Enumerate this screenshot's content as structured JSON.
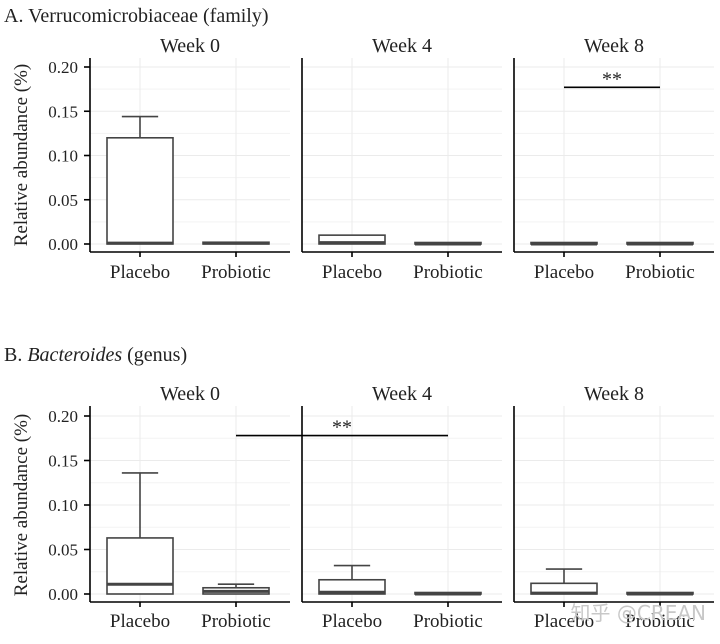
{
  "chart_data": [
    {
      "type": "boxplot",
      "title": "A. Verrucomicrobiaceae (family)",
      "title_prefix": "A. ",
      "title_main": "Verrucomicrobiaceae",
      "title_italic": false,
      "title_suffix": " (family)",
      "ylabel": "Relative abundance (%)",
      "ylim": [
        0,
        0.2
      ],
      "yticks": [
        0.0,
        0.05,
        0.1,
        0.15,
        0.2
      ],
      "ytick_labels": [
        "0.00",
        "0.05",
        "0.10",
        "0.15",
        "0.20"
      ],
      "categories": [
        "Placebo",
        "Probiotic"
      ],
      "facets": [
        {
          "label": "Week 0",
          "boxes": [
            {
              "group": "Placebo",
              "lower": 0.0,
              "q1": 0.0,
              "median": 0.001,
              "q3": 0.12,
              "upper": 0.144
            },
            {
              "group": "Probiotic",
              "lower": 0.0,
              "q1": 0.0,
              "median": 0.001,
              "q3": 0.002,
              "upper": 0.002
            }
          ]
        },
        {
          "label": "Week 4",
          "boxes": [
            {
              "group": "Placebo",
              "lower": 0.0,
              "q1": 0.0,
              "median": 0.0015,
              "q3": 0.01,
              "upper": 0.01
            },
            {
              "group": "Probiotic",
              "lower": 0.0,
              "q1": 0.0,
              "median": 0.0,
              "q3": 0.0,
              "upper": 0.0
            }
          ]
        },
        {
          "label": "Week 8",
          "boxes": [
            {
              "group": "Placebo",
              "lower": 0.0,
              "q1": 0.0,
              "median": 0.0,
              "q3": 0.0,
              "upper": 0.0
            },
            {
              "group": "Probiotic",
              "lower": 0.0,
              "q1": 0.0,
              "median": 0.0,
              "q3": 0.0,
              "upper": 0.0
            }
          ]
        }
      ],
      "annotations": [
        {
          "text": "**",
          "from": {
            "facet": 2,
            "group": "Placebo"
          },
          "to": {
            "facet": 2,
            "group": "Probiotic"
          },
          "y": 0.177
        }
      ]
    },
    {
      "type": "boxplot",
      "title": "B. Bacteroides (genus)",
      "title_prefix": "B. ",
      "title_main": "Bacteroides",
      "title_italic": true,
      "title_suffix": " (genus)",
      "ylabel": "Relative abundance (%)",
      "ylim": [
        0,
        0.2
      ],
      "yticks": [
        0.0,
        0.05,
        0.1,
        0.15,
        0.2
      ],
      "ytick_labels": [
        "0.00",
        "0.05",
        "0.10",
        "0.15",
        "0.20"
      ],
      "categories": [
        "Placebo",
        "Probiotic"
      ],
      "facets": [
        {
          "label": "Week 0",
          "boxes": [
            {
              "group": "Placebo",
              "lower": 0.0,
              "q1": 0.0,
              "median": 0.011,
              "q3": 0.063,
              "upper": 0.136
            },
            {
              "group": "Probiotic",
              "lower": 0.0,
              "q1": 0.0,
              "median": 0.003,
              "q3": 0.007,
              "upper": 0.011
            }
          ]
        },
        {
          "label": "Week 4",
          "boxes": [
            {
              "group": "Placebo",
              "lower": 0.0,
              "q1": 0.0,
              "median": 0.002,
              "q3": 0.016,
              "upper": 0.032
            },
            {
              "group": "Probiotic",
              "lower": 0.0,
              "q1": 0.0,
              "median": 0.0,
              "q3": 0.0,
              "upper": 0.0
            }
          ]
        },
        {
          "label": "Week 8",
          "boxes": [
            {
              "group": "Placebo",
              "lower": 0.0,
              "q1": 0.0,
              "median": 0.001,
              "q3": 0.012,
              "upper": 0.028
            },
            {
              "group": "Probiotic",
              "lower": 0.0,
              "q1": 0.0,
              "median": 0.0,
              "q3": 0.0,
              "upper": 0.0
            }
          ]
        }
      ],
      "annotations": [
        {
          "text": "**",
          "from": {
            "facet": 0,
            "group": "Probiotic"
          },
          "to": {
            "facet": 1,
            "group": "Probiotic"
          },
          "y": 0.178
        }
      ]
    }
  ],
  "watermark": "知乎 @CREAN"
}
